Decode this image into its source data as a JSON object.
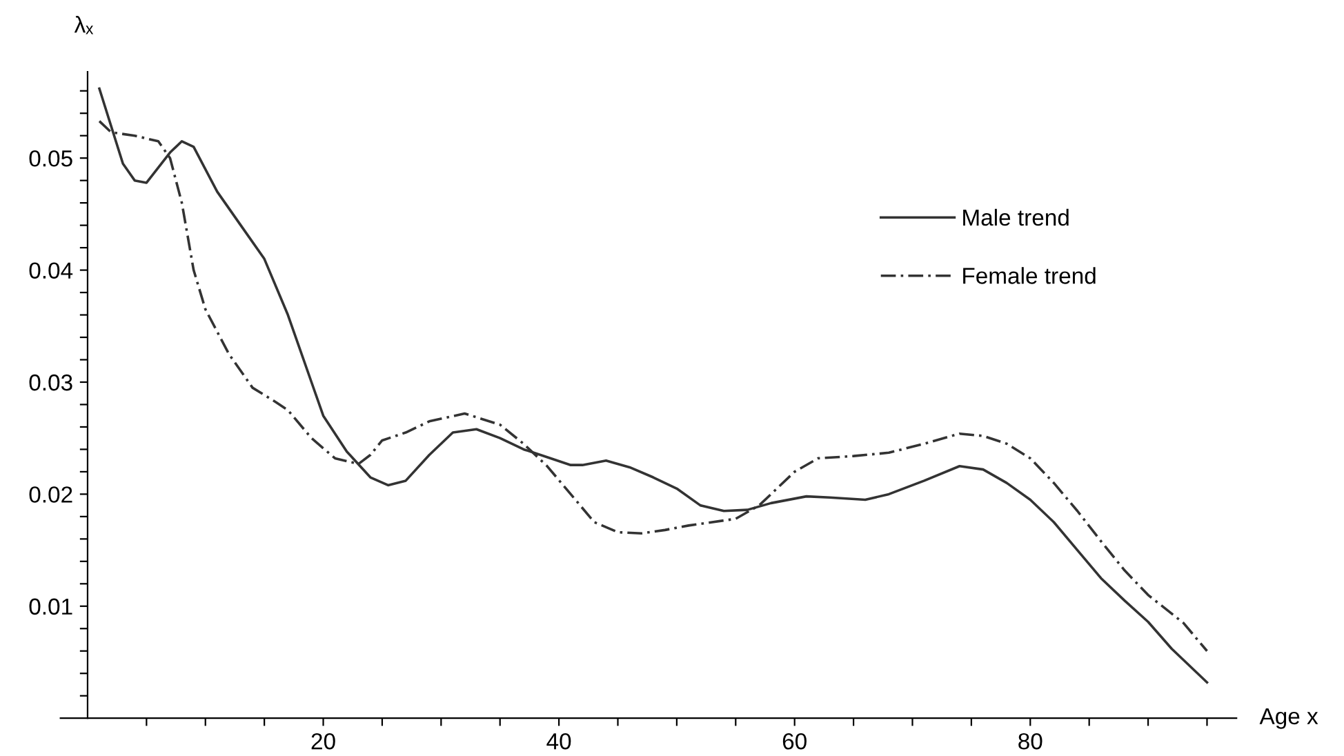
{
  "chart_data": {
    "type": "line",
    "xlabel": "Age x",
    "ylabel": "λₓ",
    "xlim": [
      -2.3,
      97.5
    ],
    "ylim": [
      0,
      0.0577
    ],
    "xticks": [
      {
        "value": 5,
        "label": null
      },
      {
        "value": 10,
        "label": null
      },
      {
        "value": 15,
        "label": null
      },
      20,
      {
        "value": 25,
        "label": null
      },
      {
        "value": 30,
        "label": null
      },
      {
        "value": 35,
        "label": null
      },
      40,
      {
        "value": 45,
        "label": null
      },
      {
        "value": 50,
        "label": null
      },
      {
        "value": 55,
        "label": null
      },
      60,
      {
        "value": 65,
        "label": null
      },
      {
        "value": 70,
        "label": null
      },
      {
        "value": 75,
        "label": null
      },
      80,
      {
        "value": 85,
        "label": null
      },
      {
        "value": 90,
        "label": null
      },
      {
        "value": 95,
        "label": null
      }
    ],
    "yticks": [
      {
        "value": 0.002,
        "label": null
      },
      {
        "value": 0.004,
        "label": null
      },
      {
        "value": 0.006,
        "label": null
      },
      {
        "value": 0.008,
        "label": null
      },
      0.01,
      {
        "value": 0.012,
        "label": null
      },
      {
        "value": 0.014,
        "label": null
      },
      {
        "value": 0.016,
        "label": null
      },
      {
        "value": 0.018,
        "label": null
      },
      0.02,
      {
        "value": 0.022,
        "label": null
      },
      {
        "value": 0.024,
        "label": null
      },
      {
        "value": 0.026,
        "label": null
      },
      {
        "value": 0.028,
        "label": null
      },
      0.03,
      {
        "value": 0.032,
        "label": null
      },
      {
        "value": 0.034,
        "label": null
      },
      {
        "value": 0.036,
        "label": null
      },
      {
        "value": 0.038,
        "label": null
      },
      0.04,
      {
        "value": 0.042,
        "label": null
      },
      {
        "value": 0.044,
        "label": null
      },
      {
        "value": 0.046,
        "label": null
      },
      {
        "value": 0.048,
        "label": null
      },
      0.05,
      {
        "value": 0.052,
        "label": null
      },
      {
        "value": 0.054,
        "label": null
      },
      {
        "value": 0.056,
        "label": null
      }
    ],
    "grid": false,
    "legend": "top right",
    "marker": "none",
    "series": [
      {
        "name": "Male trend",
        "color": "#333333",
        "line_style": "solid",
        "x": [
          1,
          3,
          4,
          5,
          7,
          8,
          9,
          11,
          13,
          15,
          17,
          19,
          20,
          22,
          24,
          25.5,
          27,
          29,
          31,
          33,
          35,
          37,
          39,
          41,
          42,
          44,
          46,
          48,
          50,
          52,
          54,
          56,
          58,
          61,
          63,
          66,
          68,
          71,
          74,
          76,
          78,
          80,
          82,
          84,
          86,
          88,
          90,
          92,
          95
        ],
        "values": [
          0.0562,
          0.0495,
          0.048,
          0.0478,
          0.0505,
          0.0515,
          0.051,
          0.047,
          0.044,
          0.041,
          0.036,
          0.03,
          0.027,
          0.0238,
          0.0215,
          0.0208,
          0.0212,
          0.0235,
          0.0255,
          0.0258,
          0.025,
          0.024,
          0.0233,
          0.0226,
          0.0226,
          0.023,
          0.0224,
          0.0215,
          0.0205,
          0.019,
          0.0185,
          0.0186,
          0.0192,
          0.0198,
          0.0197,
          0.0195,
          0.02,
          0.0212,
          0.0225,
          0.0222,
          0.021,
          0.0195,
          0.0175,
          0.015,
          0.0125,
          0.0105,
          0.0086,
          0.0062,
          0.0032
        ]
      },
      {
        "name": "Female trend",
        "color": "#333333",
        "line_style": "dashed",
        "x": [
          1,
          2,
          4,
          6,
          7,
          8,
          9,
          10,
          12,
          14,
          16,
          17,
          19,
          21,
          23,
          24,
          25,
          27,
          29,
          32,
          35,
          37,
          39,
          41,
          43,
          45,
          47,
          49,
          51,
          55,
          57,
          60,
          62,
          65,
          68,
          71,
          74,
          76,
          78,
          80,
          82,
          84,
          86,
          88,
          90,
          93,
          95
        ],
        "values": [
          0.0533,
          0.0523,
          0.052,
          0.0515,
          0.05,
          0.046,
          0.04,
          0.0365,
          0.0325,
          0.0295,
          0.0282,
          0.0275,
          0.025,
          0.0232,
          0.0227,
          0.0235,
          0.0248,
          0.0255,
          0.0265,
          0.0272,
          0.0262,
          0.0245,
          0.0225,
          0.02,
          0.0175,
          0.0166,
          0.0165,
          0.0168,
          0.0172,
          0.0178,
          0.019,
          0.022,
          0.0232,
          0.0234,
          0.0237,
          0.0245,
          0.0254,
          0.0252,
          0.0245,
          0.0232,
          0.021,
          0.0185,
          0.0158,
          0.0132,
          0.011,
          0.0085,
          0.006
        ]
      }
    ]
  }
}
